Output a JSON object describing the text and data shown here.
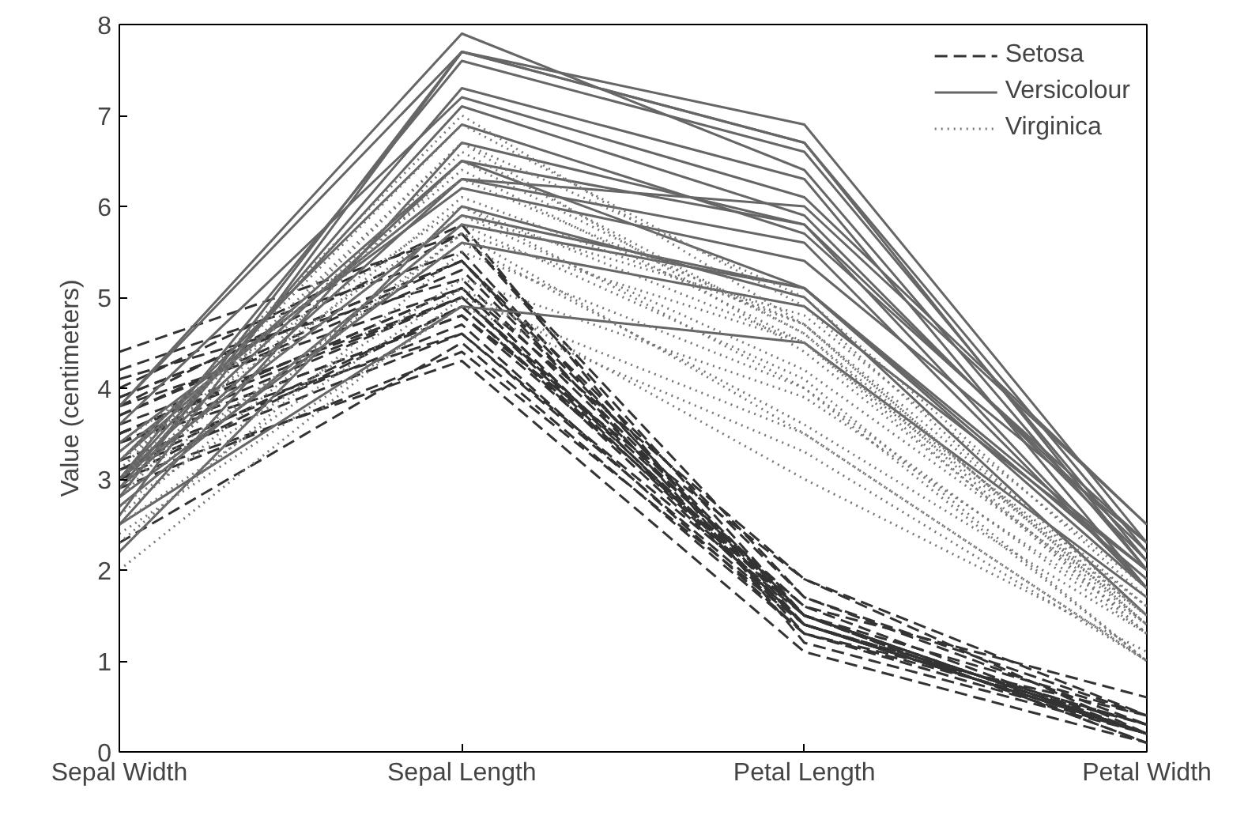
{
  "chart_data": {
    "type": "line",
    "ylabel": "Value (centimeters)",
    "categories": [
      "Sepal Width",
      "Sepal Length",
      "Petal Length",
      "Petal Width"
    ],
    "ylim": [
      0,
      8
    ],
    "yticks": [
      0,
      1,
      2,
      3,
      4,
      5,
      6,
      7,
      8
    ],
    "grid": false,
    "legend": "top right",
    "marker": "none",
    "series": [
      {
        "name": "Setosa",
        "color": "#333333",
        "line_style": "dashed",
        "values": [
          3.5,
          5.1,
          1.4,
          0.2
        ]
      },
      {
        "color": "#333333",
        "line_style": "dashed",
        "values": [
          3.0,
          4.9,
          1.4,
          0.2
        ]
      },
      {
        "color": "#333333",
        "line_style": "dashed",
        "values": [
          3.2,
          4.7,
          1.3,
          0.2
        ]
      },
      {
        "color": "#333333",
        "line_style": "dashed",
        "values": [
          3.1,
          4.6,
          1.5,
          0.2
        ]
      },
      {
        "color": "#333333",
        "line_style": "dashed",
        "values": [
          3.6,
          5.0,
          1.4,
          0.2
        ]
      },
      {
        "color": "#333333",
        "line_style": "dashed",
        "values": [
          3.9,
          5.4,
          1.7,
          0.4
        ]
      },
      {
        "color": "#333333",
        "line_style": "dashed",
        "values": [
          3.4,
          4.6,
          1.4,
          0.3
        ]
      },
      {
        "color": "#333333",
        "line_style": "dashed",
        "values": [
          3.4,
          5.0,
          1.5,
          0.2
        ]
      },
      {
        "color": "#333333",
        "line_style": "dashed",
        "values": [
          2.9,
          4.4,
          1.4,
          0.2
        ]
      },
      {
        "color": "#333333",
        "line_style": "dashed",
        "values": [
          3.1,
          4.9,
          1.5,
          0.1
        ]
      },
      {
        "color": "#333333",
        "line_style": "dashed",
        "values": [
          3.7,
          5.4,
          1.5,
          0.2
        ]
      },
      {
        "color": "#333333",
        "line_style": "dashed",
        "values": [
          3.4,
          4.8,
          1.6,
          0.2
        ]
      },
      {
        "color": "#333333",
        "line_style": "dashed",
        "values": [
          3.0,
          4.3,
          1.1,
          0.1
        ]
      },
      {
        "color": "#333333",
        "line_style": "dashed",
        "values": [
          4.0,
          5.8,
          1.2,
          0.2
        ]
      },
      {
        "color": "#333333",
        "line_style": "dashed",
        "values": [
          4.4,
          5.7,
          1.5,
          0.4
        ]
      },
      {
        "color": "#333333",
        "line_style": "dashed",
        "values": [
          3.9,
          5.4,
          1.3,
          0.4
        ]
      },
      {
        "color": "#333333",
        "line_style": "dashed",
        "values": [
          3.5,
          5.1,
          1.4,
          0.3
        ]
      },
      {
        "color": "#333333",
        "line_style": "dashed",
        "values": [
          3.8,
          5.7,
          1.7,
          0.3
        ]
      },
      {
        "color": "#333333",
        "line_style": "dashed",
        "values": [
          3.4,
          4.8,
          1.9,
          0.2
        ]
      },
      {
        "color": "#333333",
        "line_style": "dashed",
        "values": [
          4.1,
          5.2,
          1.5,
          0.1
        ]
      },
      {
        "color": "#333333",
        "line_style": "dashed",
        "values": [
          4.2,
          5.5,
          1.4,
          0.2
        ]
      },
      {
        "color": "#333333",
        "line_style": "dashed",
        "values": [
          2.3,
          4.5,
          1.3,
          0.3
        ]
      },
      {
        "color": "#333333",
        "line_style": "dashed",
        "values": [
          3.5,
          5.0,
          1.6,
          0.6
        ]
      },
      {
        "color": "#333333",
        "line_style": "dashed",
        "values": [
          3.8,
          5.1,
          1.9,
          0.4
        ]
      },
      {
        "color": "#333333",
        "line_style": "dashed",
        "values": [
          3.7,
          5.3,
          1.5,
          0.2
        ]
      },
      {
        "name": "Versicolour",
        "color": "#666666",
        "line_style": "solid",
        "values": [
          3.3,
          6.3,
          6.0,
          2.5
        ]
      },
      {
        "color": "#666666",
        "line_style": "solid",
        "values": [
          2.7,
          5.8,
          5.1,
          1.9
        ]
      },
      {
        "color": "#666666",
        "line_style": "solid",
        "values": [
          3.0,
          7.1,
          5.9,
          2.1
        ]
      },
      {
        "color": "#666666",
        "line_style": "solid",
        "values": [
          2.9,
          6.3,
          5.6,
          1.8
        ]
      },
      {
        "color": "#666666",
        "line_style": "solid",
        "values": [
          3.0,
          6.5,
          5.8,
          2.2
        ]
      },
      {
        "color": "#666666",
        "line_style": "solid",
        "values": [
          3.0,
          7.6,
          6.6,
          2.1
        ]
      },
      {
        "color": "#666666",
        "line_style": "solid",
        "values": [
          2.5,
          4.9,
          4.5,
          1.7
        ]
      },
      {
        "color": "#666666",
        "line_style": "solid",
        "values": [
          2.9,
          7.3,
          6.3,
          1.8
        ]
      },
      {
        "color": "#666666",
        "line_style": "solid",
        "values": [
          2.5,
          6.7,
          5.8,
          1.8
        ]
      },
      {
        "color": "#666666",
        "line_style": "solid",
        "values": [
          3.6,
          7.2,
          6.1,
          2.5
        ]
      },
      {
        "color": "#666666",
        "line_style": "solid",
        "values": [
          3.2,
          6.5,
          5.1,
          2.0
        ]
      },
      {
        "color": "#666666",
        "line_style": "solid",
        "values": [
          3.8,
          7.7,
          6.7,
          2.2
        ]
      },
      {
        "color": "#666666",
        "line_style": "solid",
        "values": [
          2.6,
          7.7,
          6.9,
          2.3
        ]
      },
      {
        "color": "#666666",
        "line_style": "solid",
        "values": [
          2.2,
          6.0,
          5.0,
          1.5
        ]
      },
      {
        "color": "#666666",
        "line_style": "solid",
        "values": [
          3.2,
          6.9,
          5.7,
          2.3
        ]
      },
      {
        "color": "#666666",
        "line_style": "solid",
        "values": [
          2.8,
          5.6,
          4.9,
          2.0
        ]
      },
      {
        "color": "#666666",
        "line_style": "solid",
        "values": [
          2.8,
          7.7,
          6.7,
          2.0
        ]
      },
      {
        "color": "#666666",
        "line_style": "solid",
        "values": [
          3.8,
          7.9,
          6.4,
          2.0
        ]
      },
      {
        "color": "#666666",
        "line_style": "solid",
        "values": [
          3.4,
          6.2,
          5.4,
          2.3
        ]
      },
      {
        "color": "#666666",
        "line_style": "solid",
        "values": [
          3.0,
          5.9,
          5.1,
          1.8
        ]
      },
      {
        "name": "Virginica",
        "color": "#777777",
        "line_style": "dotted",
        "values": [
          3.2,
          7.0,
          4.7,
          1.4
        ]
      },
      {
        "color": "#777777",
        "line_style": "dotted",
        "values": [
          3.2,
          6.4,
          4.5,
          1.5
        ]
      },
      {
        "color": "#777777",
        "line_style": "dotted",
        "values": [
          3.1,
          6.9,
          4.9,
          1.5
        ]
      },
      {
        "color": "#777777",
        "line_style": "dotted",
        "values": [
          2.3,
          5.5,
          4.0,
          1.3
        ]
      },
      {
        "color": "#777777",
        "line_style": "dotted",
        "values": [
          2.8,
          6.5,
          4.6,
          1.5
        ]
      },
      {
        "color": "#777777",
        "line_style": "dotted",
        "values": [
          2.8,
          5.7,
          4.5,
          1.3
        ]
      },
      {
        "color": "#777777",
        "line_style": "dotted",
        "values": [
          3.3,
          6.3,
          4.7,
          1.6
        ]
      },
      {
        "color": "#777777",
        "line_style": "dotted",
        "values": [
          2.4,
          4.9,
          3.3,
          1.0
        ]
      },
      {
        "color": "#777777",
        "line_style": "dotted",
        "values": [
          2.9,
          6.6,
          4.6,
          1.3
        ]
      },
      {
        "color": "#777777",
        "line_style": "dotted",
        "values": [
          2.7,
          5.2,
          3.9,
          1.4
        ]
      },
      {
        "color": "#777777",
        "line_style": "dotted",
        "values": [
          2.0,
          5.0,
          3.5,
          1.0
        ]
      },
      {
        "color": "#777777",
        "line_style": "dotted",
        "values": [
          3.0,
          5.9,
          4.2,
          1.5
        ]
      },
      {
        "color": "#777777",
        "line_style": "dotted",
        "values": [
          2.2,
          6.0,
          4.0,
          1.0
        ]
      },
      {
        "color": "#777777",
        "line_style": "dotted",
        "values": [
          2.9,
          6.1,
          4.7,
          1.4
        ]
      },
      {
        "color": "#777777",
        "line_style": "dotted",
        "values": [
          2.9,
          5.6,
          3.6,
          1.3
        ]
      },
      {
        "color": "#777777",
        "line_style": "dotted",
        "values": [
          3.1,
          6.7,
          4.4,
          1.4
        ]
      },
      {
        "color": "#777777",
        "line_style": "dotted",
        "values": [
          2.5,
          5.1,
          3.0,
          1.1
        ]
      },
      {
        "color": "#777777",
        "line_style": "dotted",
        "values": [
          2.6,
          5.7,
          3.5,
          1.0
        ]
      },
      {
        "color": "#777777",
        "line_style": "dotted",
        "values": [
          3.4,
          6.0,
          4.5,
          1.6
        ]
      },
      {
        "color": "#777777",
        "line_style": "dotted",
        "values": [
          3.0,
          6.7,
          5.0,
          1.7
        ]
      },
      {
        "color": "#777777",
        "line_style": "dotted",
        "values": [
          3.2,
          5.9,
          4.8,
          1.8
        ]
      },
      {
        "color": "#777777",
        "line_style": "dotted",
        "values": [
          2.7,
          5.8,
          4.1,
          1.0
        ]
      }
    ]
  }
}
